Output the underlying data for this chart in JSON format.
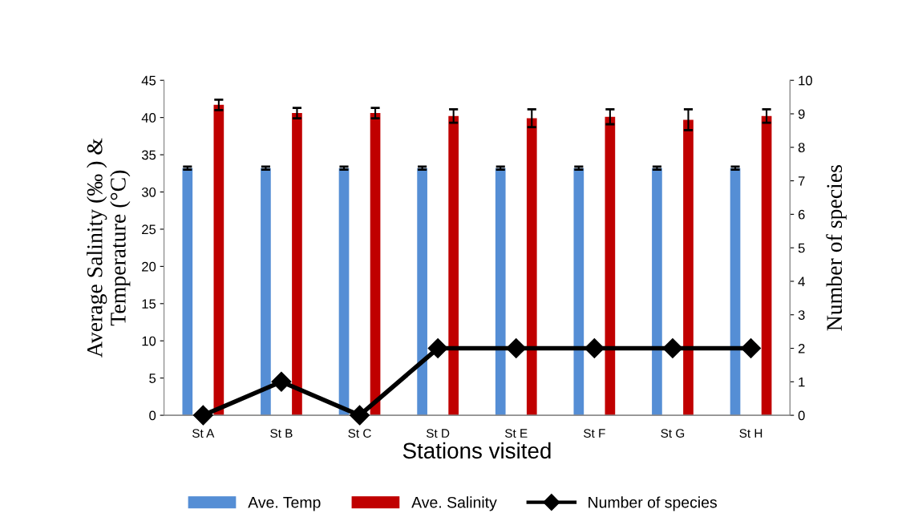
{
  "chart_data": {
    "type": "bar",
    "categories": [
      "St A",
      "St B",
      "St C",
      "St D",
      "St E",
      "St F",
      "St G",
      "St H"
    ],
    "xlabel": "Stations visited",
    "ylabel": "Average Salinity (‰ ) &\nTemperature (°C)",
    "y2label": "Number of species",
    "series": [
      {
        "name": "Ave. Temp",
        "color": "#558ed5",
        "values": [
          33.2,
          33.2,
          33.2,
          33.2,
          33.2,
          33.2,
          33.2,
          33.2
        ],
        "errors": [
          0.2,
          0.2,
          0.2,
          0.2,
          0.2,
          0.2,
          0.2,
          0.2
        ]
      },
      {
        "name": "Ave. Salinity",
        "color": "#c00000",
        "values": [
          41.7,
          40.6,
          40.6,
          40.2,
          39.9,
          40.1,
          39.7,
          40.2
        ],
        "errors": [
          0.7,
          0.7,
          0.7,
          0.9,
          1.2,
          1.0,
          1.4,
          0.9
        ]
      },
      {
        "name": "Number of species",
        "type": "line",
        "axis": "y2",
        "color": "#000000",
        "marker": "diamond",
        "values": [
          0,
          1,
          0,
          2,
          2,
          2,
          2,
          2
        ]
      }
    ],
    "ylim": [
      0,
      45
    ],
    "yticks": [
      0,
      5,
      10,
      15,
      20,
      25,
      30,
      35,
      40,
      45
    ],
    "y2lim": [
      0,
      10
    ],
    "y2ticks": [
      0,
      1,
      2,
      3,
      4,
      5,
      6,
      7,
      8,
      9,
      10
    ],
    "legend": "bottom",
    "grid": false
  }
}
